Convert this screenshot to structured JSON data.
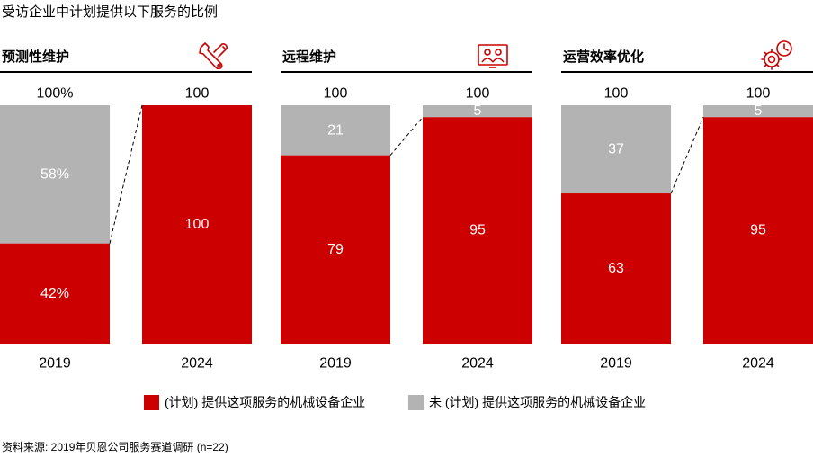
{
  "title": "受访企业中计划提供以下服务的比例",
  "colors": {
    "provided": "#cc0000",
    "not_provided": "#b3b3b3",
    "text_on_red": "#ffffff",
    "text_on_gray": "#ffffff"
  },
  "legend": [
    {
      "label": "(计划) 提供这项服务的机械设备企业",
      "color": "#cc0000"
    },
    {
      "label": "未 (计划) 提供这项服务的机械设备企业",
      "color": "#b3b3b3"
    }
  ],
  "source": "资料来源: 2019年贝恩公司服务赛道调研 (n=22)",
  "chart_data": [
    {
      "type": "bar",
      "title": "预测性维护",
      "icon": "wrench-icon",
      "categories": [
        "2019",
        "2024"
      ],
      "totals": [
        "100%",
        "100"
      ],
      "series": [
        {
          "name": "(计划) 提供这项服务的机械设备企业",
          "values": [
            42,
            100
          ],
          "labels": [
            "42%",
            "100"
          ]
        },
        {
          "name": "未 (计划) 提供这项服务的机械设备企业",
          "values": [
            58,
            0
          ],
          "labels": [
            "58%",
            ""
          ]
        }
      ],
      "ylim": [
        0,
        100
      ]
    },
    {
      "type": "bar",
      "title": "远程维护",
      "icon": "remote-support-icon",
      "categories": [
        "2019",
        "2024"
      ],
      "totals": [
        "100",
        "100"
      ],
      "series": [
        {
          "name": "(计划) 提供这项服务的机械设备企业",
          "values": [
            79,
            95
          ],
          "labels": [
            "79",
            "95"
          ]
        },
        {
          "name": "未 (计划) 提供这项服务的机械设备企业",
          "values": [
            21,
            5
          ],
          "labels": [
            "21",
            "5"
          ]
        }
      ],
      "ylim": [
        0,
        100
      ]
    },
    {
      "type": "bar",
      "title": "运营效率优化",
      "icon": "gear-clock-icon",
      "categories": [
        "2019",
        "2024"
      ],
      "totals": [
        "100",
        "100"
      ],
      "series": [
        {
          "name": "(计划) 提供这项服务的机械设备企业",
          "values": [
            63,
            95
          ],
          "labels": [
            "63",
            "95"
          ]
        },
        {
          "name": "未 (计划) 提供这项服务的机械设备企业",
          "values": [
            37,
            5
          ],
          "labels": [
            "37",
            "5"
          ]
        }
      ],
      "ylim": [
        0,
        100
      ]
    }
  ]
}
